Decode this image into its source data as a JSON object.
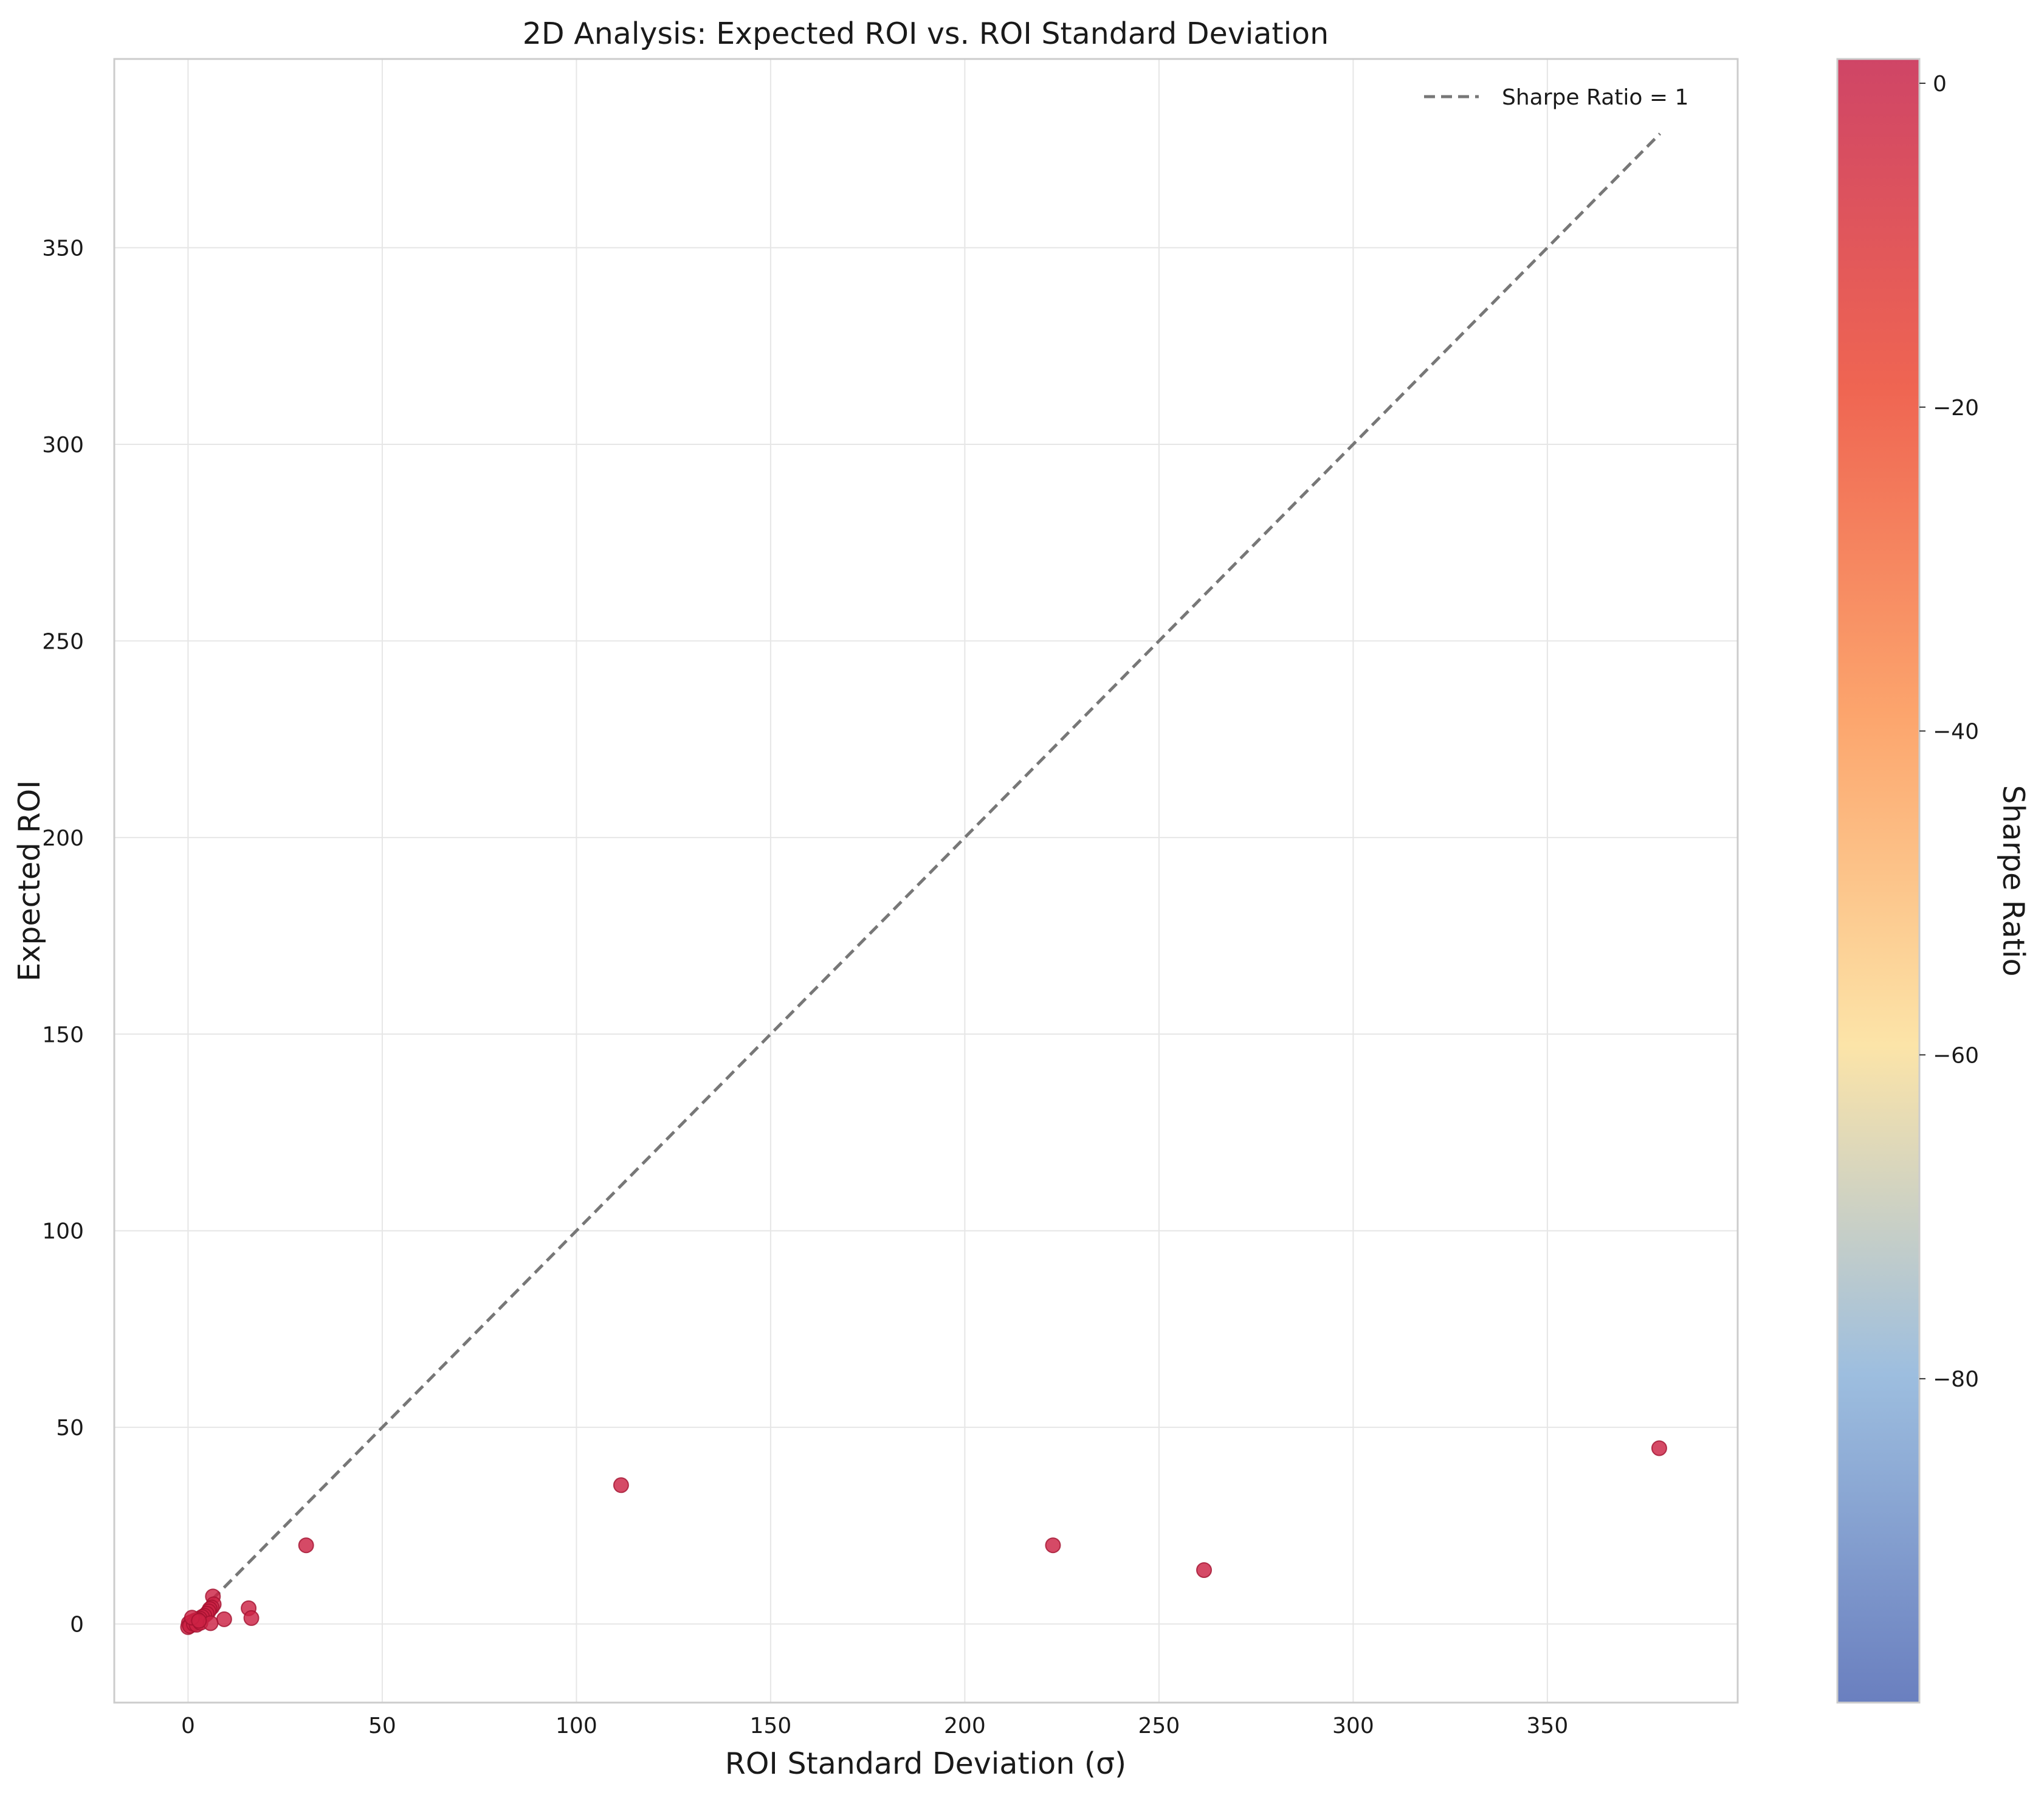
{
  "chart_data": {
    "type": "scatter",
    "title": "2D Analysis: Expected ROI vs. ROI Standard Deviation",
    "xlabel": "ROI Standard Deviation (σ)",
    "ylabel": "Expected ROI",
    "xlim": [
      -19,
      399
    ],
    "ylim": [
      -20,
      398
    ],
    "xticks": [
      0,
      50,
      100,
      150,
      200,
      250,
      300,
      350
    ],
    "yticks": [
      0,
      50,
      100,
      150,
      200,
      250,
      300,
      350
    ],
    "grid": true,
    "legend": {
      "placement": "top-right",
      "entries": [
        "Sharpe Ratio = 1"
      ]
    },
    "reference_line": {
      "name": "Sharpe Ratio = 1",
      "style": "dashed",
      "color": "#777777",
      "x": [
        0,
        379
      ],
      "y": [
        0,
        379
      ]
    },
    "marker_color": "#cc2244",
    "points": [
      {
        "x": 111.5,
        "y": 35.3
      },
      {
        "x": 30.4,
        "y": 20.0
      },
      {
        "x": 222.7,
        "y": 20.0
      },
      {
        "x": 261.6,
        "y": 13.7
      },
      {
        "x": 378.8,
        "y": 44.7
      },
      {
        "x": 15.6,
        "y": 4.0
      },
      {
        "x": 16.3,
        "y": 1.5
      },
      {
        "x": 9.3,
        "y": 1.2
      },
      {
        "x": 6.4,
        "y": 7.0
      },
      {
        "x": 6.6,
        "y": 5.0
      },
      {
        "x": 6.1,
        "y": 4.2
      },
      {
        "x": 5.6,
        "y": 3.8
      },
      {
        "x": 5.3,
        "y": 3.2
      },
      {
        "x": 4.8,
        "y": 2.6
      },
      {
        "x": 4.2,
        "y": 2.1
      },
      {
        "x": 3.6,
        "y": 1.8
      },
      {
        "x": 3.0,
        "y": 1.4
      },
      {
        "x": 2.5,
        "y": 1.1
      },
      {
        "x": 1.8,
        "y": 0.9
      },
      {
        "x": 1.2,
        "y": 0.6
      },
      {
        "x": 0.7,
        "y": 0.4
      },
      {
        "x": 0.2,
        "y": 0.2
      },
      {
        "x": 0.0,
        "y": -0.8
      },
      {
        "x": 0.5,
        "y": -0.5
      },
      {
        "x": 1.5,
        "y": 0.0
      },
      {
        "x": 2.2,
        "y": -0.2
      },
      {
        "x": 3.2,
        "y": 0.3
      },
      {
        "x": 5.8,
        "y": 0.2
      },
      {
        "x": 1.0,
        "y": 1.6
      },
      {
        "x": 2.8,
        "y": 0.8
      }
    ],
    "colorbar": {
      "label": "Sharpe Ratio",
      "min": -100,
      "max": 1.5,
      "ticks": [
        0,
        -20,
        -40,
        -60,
        -80
      ],
      "tick_labels": [
        "0",
        "−20",
        "−40",
        "−60",
        "−80"
      ],
      "gradient": [
        "#6a7fbf",
        "#9dbedf",
        "#fce4a8",
        "#fca56d",
        "#ef6552",
        "#cf4566"
      ]
    }
  }
}
